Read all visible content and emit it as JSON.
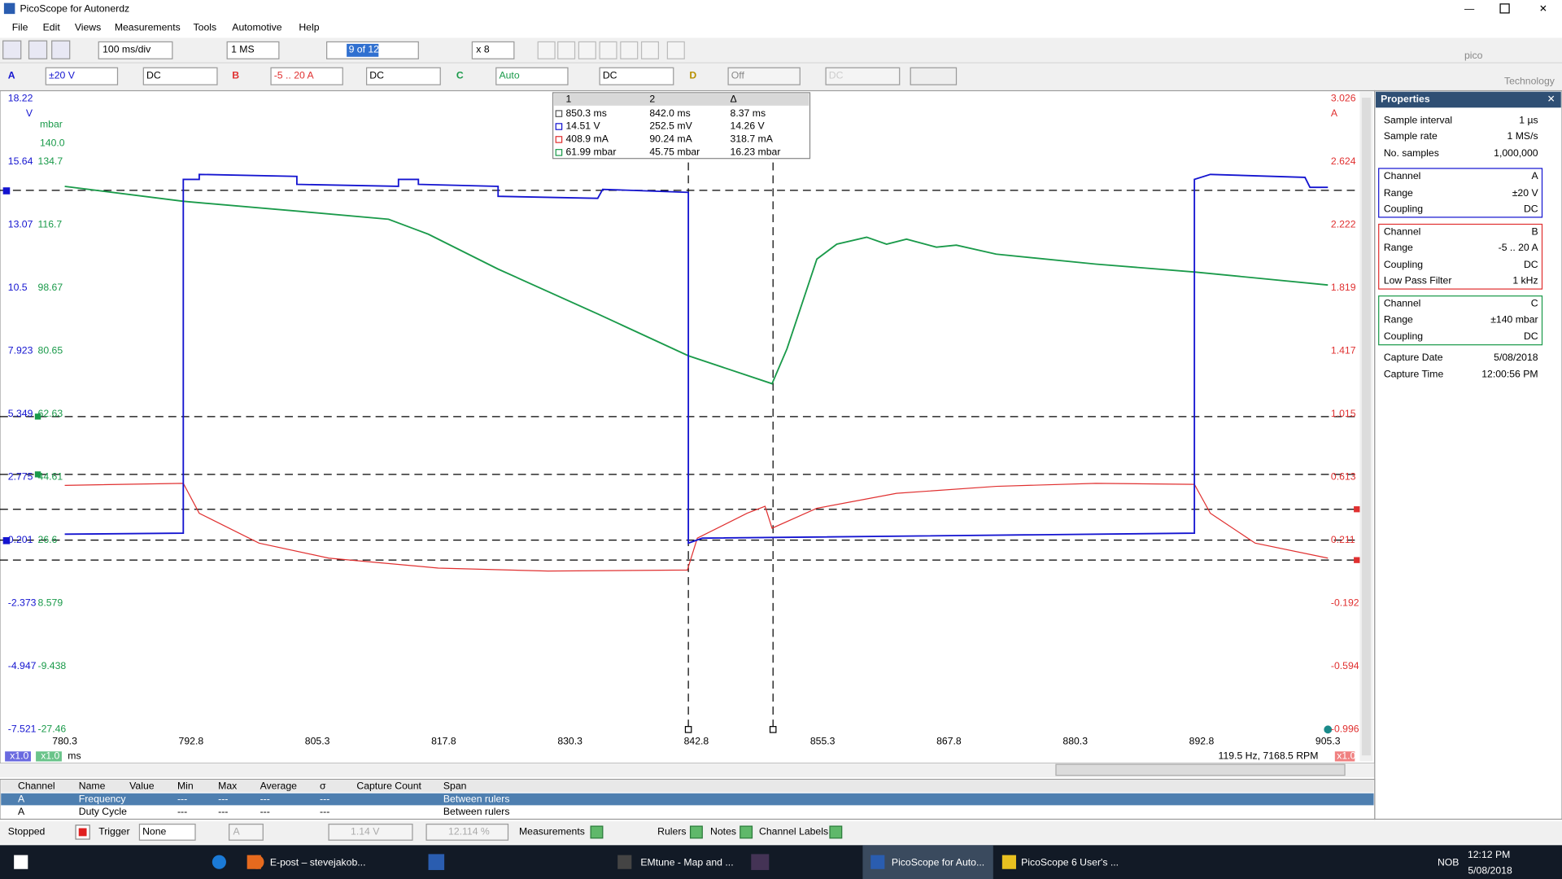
{
  "window_title": "PicoScope for Autonerdz",
  "menu": [
    "File",
    "Edit",
    "Views",
    "Measurements",
    "Tools",
    "Automotive",
    "Help"
  ],
  "toolbar": {
    "timebase": "100 ms/div",
    "samples": "1 MS",
    "buffer": "9 of 12",
    "zoom": "x 8"
  },
  "channels": [
    {
      "label": "A",
      "range": "±20 V",
      "coupling": "DC"
    },
    {
      "label": "B",
      "range": "-5 .. 20 A",
      "coupling": "DC"
    },
    {
      "label": "C",
      "range": "Auto",
      "coupling": "DC"
    },
    {
      "label": "D",
      "range": "Off",
      "coupling": "DC"
    }
  ],
  "logo": {
    "name": "pico",
    "sub": "Technology"
  },
  "axes": {
    "a_unit": "V",
    "a_ticks": [
      "18.22",
      "15.64",
      "13.07",
      "10.5",
      "7.923",
      "5.349",
      "2.775",
      "0.201",
      "-2.373",
      "-4.947",
      "-7.521"
    ],
    "c_unit": "mbar",
    "c_ticks": [
      "140.0",
      "134.7",
      "116.7",
      "98.67",
      "80.65",
      "62.63",
      "44.61",
      "26.6",
      "8.579",
      "-9.438",
      "-27.46"
    ],
    "b_unit": "A",
    "b_ticks": [
      "3.026",
      "2.624",
      "2.222",
      "1.819",
      "1.417",
      "1.015",
      "0.613",
      "0.211",
      "-0.192",
      "-0.594",
      "-0.996"
    ],
    "x_ticks": [
      "780.3",
      "792.8",
      "805.3",
      "817.8",
      "830.3",
      "842.8",
      "855.3",
      "867.8",
      "880.3",
      "892.8",
      "905.3"
    ],
    "x_unit": "ms",
    "chip": "x1.0"
  },
  "rulers": {
    "headers": [
      "1",
      "2",
      "Δ"
    ],
    "rows": [
      [
        "850.3 ms",
        "842.0 ms",
        "8.37 ms"
      ],
      [
        "14.51 V",
        "252.5 mV",
        "14.26 V"
      ],
      [
        "408.9 mA",
        "90.24 mA",
        "318.7 mA"
      ],
      [
        "61.99 mbar",
        "45.75 mbar",
        "16.23 mbar"
      ]
    ]
  },
  "frequency": "119.5 Hz, 7168.5 RPM",
  "properties": {
    "title": "Properties",
    "general": [
      [
        "Sample interval",
        "1 µs"
      ],
      [
        "Sample rate",
        "1 MS/s"
      ],
      [
        "No. samples",
        "1,000,000"
      ]
    ],
    "groups": [
      [
        [
          "Channel",
          "A"
        ],
        [
          "Range",
          "±20 V"
        ],
        [
          "Coupling",
          "DC"
        ]
      ],
      [
        [
          "Channel",
          "B"
        ],
        [
          "Range",
          "-5 .. 20 A"
        ],
        [
          "Coupling",
          "DC"
        ],
        [
          "Low Pass Filter",
          "1 kHz"
        ]
      ],
      [
        [
          "Channel",
          "C"
        ],
        [
          "Range",
          "±140 mbar"
        ],
        [
          "Coupling",
          "DC"
        ]
      ]
    ],
    "capture": [
      [
        "Capture Date",
        "5/08/2018"
      ],
      [
        "Capture Time",
        "12:00:56 PM"
      ]
    ]
  },
  "measurements": {
    "headers": [
      "Channel",
      "Name",
      "Value",
      "Min",
      "Max",
      "Average",
      "σ",
      "Capture Count",
      "Span"
    ],
    "rows": [
      {
        "channel": "A",
        "name": "Frequency",
        "min": "---",
        "max": "---",
        "average": "---",
        "sigma": "---",
        "span": "Between rulers"
      },
      {
        "channel": "A",
        "name": "Duty Cycle",
        "min": "---",
        "max": "---",
        "average": "---",
        "sigma": "---",
        "span": "Between rulers"
      }
    ]
  },
  "bottom_bar": {
    "status": "Stopped",
    "trigger": "Trigger",
    "trigger_mode": "None",
    "trigger_channel": "A",
    "trigger_level": "1.14 V",
    "pre_trigger": "12.114 %",
    "measurements": "Measurements",
    "rulers": "Rulers",
    "notes": "Notes",
    "channel_labels": "Channel Labels"
  },
  "taskbar": {
    "apps": [
      "E-post – stevejakob...",
      "EMtune - Map and ...",
      "PicoScope for Auto...",
      "PicoScope 6 User's ..."
    ],
    "lang": "NOB",
    "time": "12:12 PM",
    "date": "5/08/2018"
  }
}
